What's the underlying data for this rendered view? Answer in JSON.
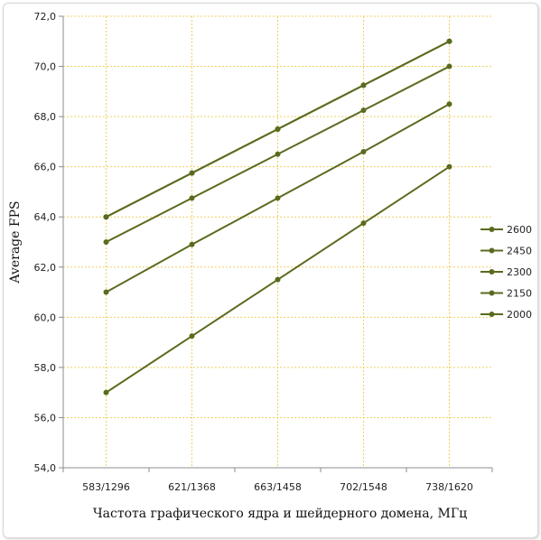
{
  "chart_data": {
    "type": "line",
    "title": "",
    "xlabel": "Частота графического ядра и шейдерного домена, МГц",
    "ylabel": "Average FPS",
    "categories": [
      "583/1296",
      "621/1368",
      "663/1458",
      "702/1548",
      "738/1620"
    ],
    "ylim": [
      54,
      72
    ],
    "yticks": [
      "54,0",
      "56,0",
      "58,0",
      "60,0",
      "62,0",
      "64,0",
      "66,0",
      "68,0",
      "70,0",
      "72,0"
    ],
    "grid": true,
    "legend_position": "right",
    "series": [
      {
        "name": "2600",
        "values": [
          64.0,
          65.75,
          67.5,
          69.25,
          71.0
        ]
      },
      {
        "name": "2450",
        "values": [
          64.0,
          65.75,
          67.5,
          69.25,
          71.0
        ]
      },
      {
        "name": "2300",
        "values": [
          63.0,
          64.75,
          66.5,
          68.25,
          70.0
        ]
      },
      {
        "name": "2150",
        "values": [
          61.0,
          62.9,
          64.75,
          66.6,
          68.5
        ]
      },
      {
        "name": "2000",
        "values": [
          57.0,
          59.25,
          61.5,
          63.75,
          66.0
        ]
      }
    ],
    "colors": {
      "line": "#5a6b1e",
      "grid": "#f0d060",
      "axis": "#8c8c8c"
    }
  }
}
